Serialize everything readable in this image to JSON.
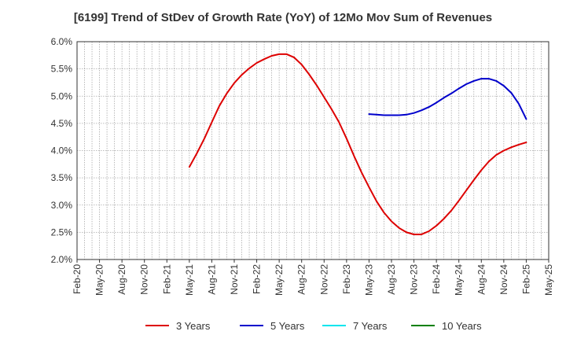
{
  "chart_data": {
    "type": "line",
    "title": "[6199]  Trend of StDev of Growth Rate (YoY) of 12Mo Mov Sum of Revenues",
    "xlabel": "",
    "ylabel": "",
    "ylim": [
      2.0,
      6.0
    ],
    "y_ticks": [
      2.0,
      2.5,
      3.0,
      3.5,
      4.0,
      4.5,
      5.0,
      5.5,
      6.0
    ],
    "y_tick_labels": [
      "2.0%",
      "2.5%",
      "3.0%",
      "3.5%",
      "4.0%",
      "4.5%",
      "5.0%",
      "5.5%",
      "6.0%"
    ],
    "x_tick_labels": [
      "Feb-20",
      "May-20",
      "Aug-20",
      "Nov-20",
      "Feb-21",
      "May-21",
      "Aug-21",
      "Nov-21",
      "Feb-22",
      "May-22",
      "Aug-22",
      "Nov-22",
      "Feb-23",
      "May-23",
      "Aug-23",
      "Nov-23",
      "Feb-24",
      "May-24",
      "Aug-24",
      "Nov-24",
      "Feb-25",
      "May-25"
    ],
    "x_range_months": [
      0,
      63
    ],
    "grid": true,
    "legend_position": "bottom",
    "series": [
      {
        "name": "3 Years",
        "color": "#dd0000",
        "x_months": [
          15,
          16,
          17,
          18,
          19,
          20,
          21,
          22,
          23,
          24,
          25,
          26,
          27,
          28,
          29,
          30,
          31,
          32,
          33,
          34,
          35,
          36,
          37,
          38,
          39,
          40,
          41,
          42,
          43,
          44,
          45,
          46,
          47,
          48,
          49,
          50,
          51,
          52,
          53,
          54,
          55,
          56,
          57,
          58,
          59,
          60
        ],
        "values": [
          3.7,
          3.95,
          4.22,
          4.52,
          4.82,
          5.05,
          5.24,
          5.39,
          5.51,
          5.61,
          5.68,
          5.74,
          5.77,
          5.77,
          5.71,
          5.58,
          5.4,
          5.2,
          4.98,
          4.76,
          4.52,
          4.22,
          3.9,
          3.6,
          3.33,
          3.07,
          2.86,
          2.7,
          2.58,
          2.5,
          2.46,
          2.46,
          2.52,
          2.62,
          2.75,
          2.9,
          3.08,
          3.27,
          3.46,
          3.64,
          3.8,
          3.92,
          4.0,
          4.06,
          4.11,
          4.15
        ]
      },
      {
        "name": "5 Years",
        "color": "#0000cc",
        "x_months": [
          39,
          40,
          41,
          42,
          43,
          44,
          45,
          46,
          47,
          48,
          49,
          50,
          51,
          52,
          53,
          54,
          55,
          56,
          57,
          58,
          59,
          60
        ],
        "values": [
          4.67,
          4.66,
          4.65,
          4.65,
          4.65,
          4.66,
          4.69,
          4.74,
          4.8,
          4.88,
          4.97,
          5.05,
          5.14,
          5.22,
          5.28,
          5.32,
          5.32,
          5.28,
          5.19,
          5.06,
          4.86,
          4.58
        ]
      },
      {
        "name": "7 Years",
        "color": "#00e5ee",
        "x_months": [],
        "values": []
      },
      {
        "name": "10 Years",
        "color": "#008000",
        "x_months": [],
        "values": []
      }
    ]
  }
}
